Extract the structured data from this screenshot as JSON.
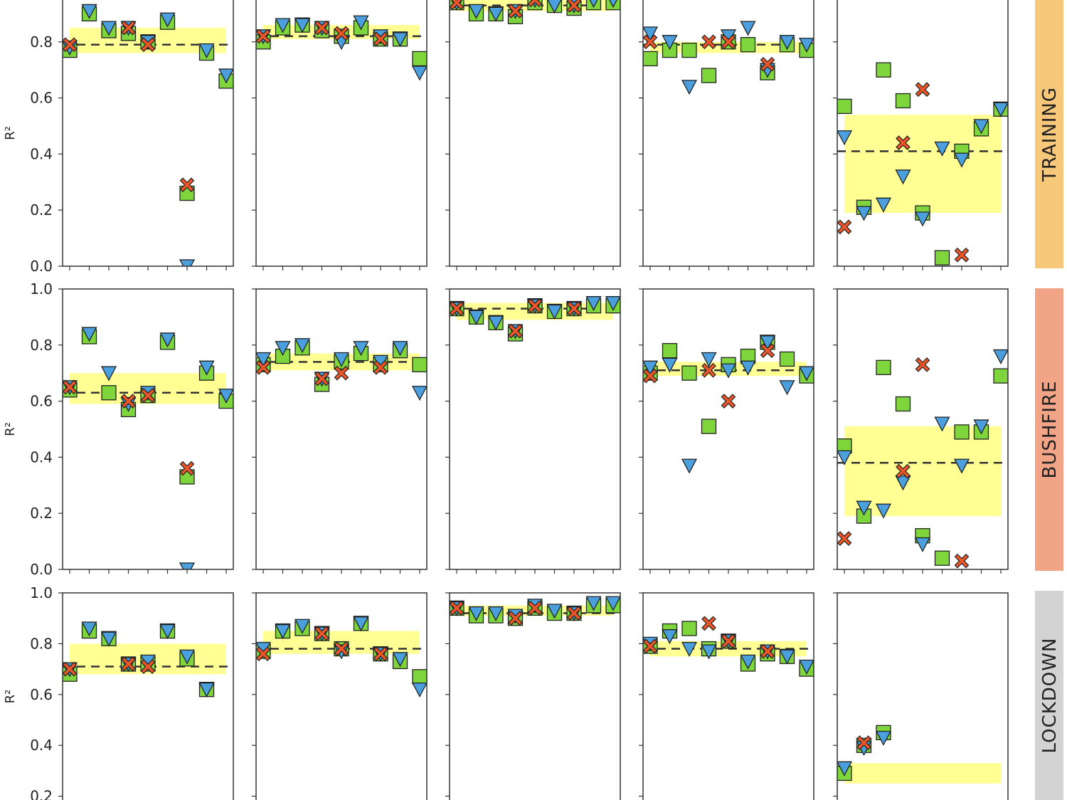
{
  "chart_data": {
    "type": "scatter",
    "layout": "3 rows x 5 columns small multiples",
    "row_labels": [
      "TRAINING",
      "BUSHFIRE",
      "LOCKDOWN"
    ],
    "row_label_colors": [
      "#f8c87a",
      "#f2a487",
      "#d3d3d3"
    ],
    "ylabel": "R²",
    "yticks": [
      0.0,
      0.2,
      0.4,
      0.6,
      0.8,
      1.0
    ],
    "ylim_rows": [
      [
        0.0,
        0.95
      ],
      [
        0.0,
        1.0
      ],
      [
        0.3,
        1.0
      ]
    ],
    "points_per_panel": 9,
    "band_color": "#ffff80",
    "series_styles": [
      {
        "marker": "square",
        "color": "#7ed63c"
      },
      {
        "marker": "triangle-down",
        "color": "#4a9fdc"
      },
      {
        "marker": "x-cross",
        "color": "#e8562a"
      }
    ],
    "panels": [
      [
        {
          "median": 0.79,
          "band": [
            0.76,
            0.85
          ],
          "series": [
            [
              0.77,
              0.9,
              0.84,
              0.83,
              0.8,
              0.87,
              0.26,
              0.76,
              0.66
            ],
            [
              0.78,
              0.91,
              0.85,
              0.85,
              0.8,
              0.88,
              0.0,
              0.77,
              0.68
            ],
            [
              0.79,
              null,
              null,
              0.85,
              0.79,
              null,
              0.29,
              null,
              null
            ]
          ]
        },
        {
          "median": 0.82,
          "band": [
            0.81,
            0.86
          ],
          "series": [
            [
              0.8,
              0.85,
              0.86,
              0.84,
              0.82,
              0.85,
              0.81,
              0.81,
              0.74
            ],
            [
              0.82,
              0.86,
              0.86,
              0.85,
              0.8,
              0.87,
              0.82,
              0.81,
              0.69
            ],
            [
              0.82,
              null,
              null,
              0.85,
              0.83,
              null,
              0.81,
              null,
              null
            ]
          ]
        },
        {
          "median": 0.93,
          "band": [
            0.91,
            0.95
          ],
          "series": [
            [
              0.94,
              0.9,
              0.9,
              0.89,
              0.94,
              0.93,
              0.92,
              0.94,
              0.94
            ],
            [
              0.94,
              0.91,
              0.9,
              0.91,
              0.95,
              0.93,
              0.93,
              0.95,
              0.95
            ],
            [
              0.94,
              null,
              null,
              0.91,
              0.95,
              null,
              0.93,
              null,
              null
            ]
          ]
        },
        {
          "median": 0.79,
          "band": [
            0.76,
            0.8
          ],
          "series": [
            [
              0.74,
              0.77,
              0.77,
              0.68,
              0.8,
              0.79,
              0.69,
              0.79,
              0.77
            ],
            [
              0.83,
              0.8,
              0.64,
              null,
              0.82,
              0.85,
              0.7,
              0.8,
              0.79
            ],
            [
              0.8,
              null,
              null,
              0.8,
              0.8,
              null,
              0.72,
              null,
              null
            ]
          ]
        },
        {
          "median": 0.41,
          "band": [
            0.19,
            0.54
          ],
          "series": [
            [
              0.57,
              0.21,
              0.7,
              0.59,
              0.19,
              0.03,
              0.41,
              0.49,
              0.56
            ],
            [
              0.46,
              0.19,
              0.22,
              0.32,
              0.17,
              0.42,
              0.38,
              0.5,
              0.56
            ],
            [
              0.14,
              null,
              null,
              0.44,
              0.63,
              null,
              0.04,
              null,
              null
            ]
          ]
        }
      ],
      [
        {
          "median": 0.63,
          "band": [
            0.59,
            0.7
          ],
          "series": [
            [
              0.64,
              0.83,
              0.63,
              0.57,
              0.62,
              0.81,
              0.33,
              0.7,
              0.6
            ],
            [
              0.65,
              0.84,
              0.7,
              0.59,
              0.63,
              0.82,
              0.0,
              0.72,
              0.62
            ],
            [
              0.65,
              null,
              null,
              0.6,
              0.62,
              null,
              0.36,
              null,
              null
            ]
          ]
        },
        {
          "median": 0.74,
          "band": [
            0.71,
            0.77
          ],
          "series": [
            [
              0.73,
              0.76,
              0.79,
              0.66,
              0.74,
              0.77,
              0.73,
              0.78,
              0.73
            ],
            [
              0.75,
              0.79,
              0.8,
              0.68,
              0.75,
              0.79,
              0.74,
              0.79,
              0.63
            ],
            [
              0.72,
              null,
              null,
              0.68,
              0.7,
              null,
              0.72,
              null,
              null
            ]
          ]
        },
        {
          "median": 0.93,
          "band": [
            0.89,
            0.95
          ],
          "series": [
            [
              0.93,
              0.9,
              0.88,
              0.84,
              0.94,
              0.92,
              0.93,
              0.94,
              0.94
            ],
            [
              0.93,
              0.9,
              0.88,
              0.85,
              0.94,
              0.92,
              0.93,
              0.95,
              0.95
            ],
            [
              0.93,
              null,
              null,
              0.85,
              0.94,
              null,
              0.93,
              null,
              null
            ]
          ]
        },
        {
          "median": 0.71,
          "band": [
            0.69,
            0.74
          ],
          "series": [
            [
              0.7,
              0.78,
              0.7,
              0.51,
              0.73,
              0.76,
              0.81,
              0.75,
              0.69
            ],
            [
              0.72,
              0.73,
              0.37,
              0.75,
              0.71,
              0.72,
              0.81,
              0.65,
              0.7
            ],
            [
              0.69,
              null,
              null,
              0.71,
              0.6,
              null,
              0.78,
              null,
              null
            ]
          ]
        },
        {
          "median": 0.38,
          "band": [
            0.19,
            0.51
          ],
          "series": [
            [
              0.44,
              0.19,
              0.72,
              0.59,
              0.12,
              0.04,
              0.49,
              0.49,
              0.69
            ],
            [
              0.4,
              0.22,
              0.21,
              0.31,
              0.09,
              0.52,
              0.37,
              0.51,
              0.76
            ],
            [
              0.11,
              null,
              null,
              0.35,
              0.73,
              null,
              0.03,
              null,
              null
            ]
          ]
        }
      ],
      [
        {
          "median": 0.71,
          "band": [
            0.68,
            0.8
          ],
          "series": [
            [
              0.68,
              0.85,
              0.82,
              0.72,
              0.72,
              0.85,
              0.74,
              0.62,
              null
            ],
            [
              0.7,
              0.86,
              0.82,
              0.72,
              0.73,
              0.85,
              0.75,
              0.62,
              null
            ],
            [
              0.7,
              null,
              null,
              0.72,
              0.71,
              null,
              null,
              null,
              null
            ]
          ]
        },
        {
          "median": 0.78,
          "band": [
            0.76,
            0.85
          ],
          "series": [
            [
              0.77,
              0.85,
              0.86,
              0.84,
              0.78,
              0.88,
              0.76,
              0.73,
              0.67
            ],
            [
              0.78,
              0.85,
              0.87,
              0.84,
              0.77,
              0.88,
              0.76,
              0.74,
              0.62
            ],
            [
              0.76,
              null,
              null,
              0.84,
              0.78,
              null,
              0.76,
              null,
              null
            ]
          ]
        },
        {
          "median": 0.92,
          "band": [
            0.91,
            0.95
          ],
          "series": [
            [
              0.94,
              0.91,
              0.91,
              0.9,
              0.94,
              0.92,
              0.92,
              0.95,
              0.95
            ],
            [
              0.94,
              0.92,
              0.92,
              0.91,
              0.95,
              0.93,
              0.92,
              0.96,
              0.96
            ],
            [
              0.94,
              null,
              null,
              0.9,
              0.94,
              null,
              0.92,
              null,
              null
            ]
          ]
        },
        {
          "median": 0.78,
          "band": [
            0.75,
            0.81
          ],
          "series": [
            [
              0.79,
              0.85,
              0.86,
              0.78,
              0.81,
              0.72,
              0.76,
              0.75,
              0.7
            ],
            [
              0.8,
              0.83,
              0.78,
              0.77,
              0.81,
              0.73,
              0.77,
              0.75,
              0.71
            ],
            [
              0.79,
              null,
              null,
              0.88,
              0.81,
              null,
              0.77,
              null,
              null
            ]
          ]
        },
        {
          "median": null,
          "band": [
            0.25,
            0.33
          ],
          "series": [
            [
              0.29,
              0.4,
              0.45,
              null,
              null,
              null,
              null,
              null,
              null
            ],
            [
              0.31,
              0.39,
              0.43,
              null,
              null,
              null,
              null,
              null,
              null
            ],
            [
              null,
              0.41,
              null,
              null,
              null,
              null,
              null,
              null,
              null
            ]
          ]
        }
      ]
    ]
  }
}
